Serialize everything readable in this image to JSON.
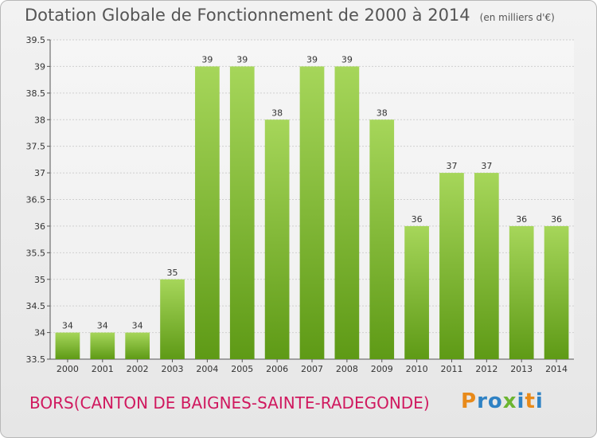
{
  "header": {
    "title": "Dotation Globale de Fonctionnement de 2000 à 2014",
    "unit": "(en milliers d'€)"
  },
  "footer": {
    "commune": "BORS(CANTON DE BAIGNES-SAINTE-RADEGONDE)",
    "logo": [
      "P",
      "r",
      "o",
      "x",
      "i",
      "t",
      "i"
    ]
  },
  "colors": {
    "bar_top": "#a6d65a",
    "bar_bottom": "#5e9a16",
    "grid": "#cfcfcf",
    "commune_text": "#d0195f"
  },
  "chart_data": {
    "type": "bar",
    "title": "Dotation Globale de Fonctionnement de 2000 à 2014",
    "subtitle": "(en milliers d'€)",
    "categories": [
      "2000",
      "2001",
      "2002",
      "2003",
      "2004",
      "2005",
      "2006",
      "2007",
      "2008",
      "2009",
      "2010",
      "2011",
      "2012",
      "2013",
      "2014"
    ],
    "values": [
      34,
      34,
      34,
      35,
      39,
      39,
      38,
      39,
      39,
      38,
      36,
      37,
      37,
      36,
      36
    ],
    "data_labels": [
      "34",
      "34",
      "34",
      "35",
      "39",
      "39",
      "38",
      "39",
      "39",
      "38",
      "36",
      "37",
      "37",
      "36",
      "36"
    ],
    "ylim": [
      33.5,
      39.5
    ],
    "yticks": [
      "33.5",
      "34",
      "34.5",
      "35",
      "35.5",
      "36",
      "36.5",
      "37",
      "37.5",
      "38",
      "38.5",
      "39",
      "39.5"
    ],
    "grid": true,
    "legend": "none"
  }
}
